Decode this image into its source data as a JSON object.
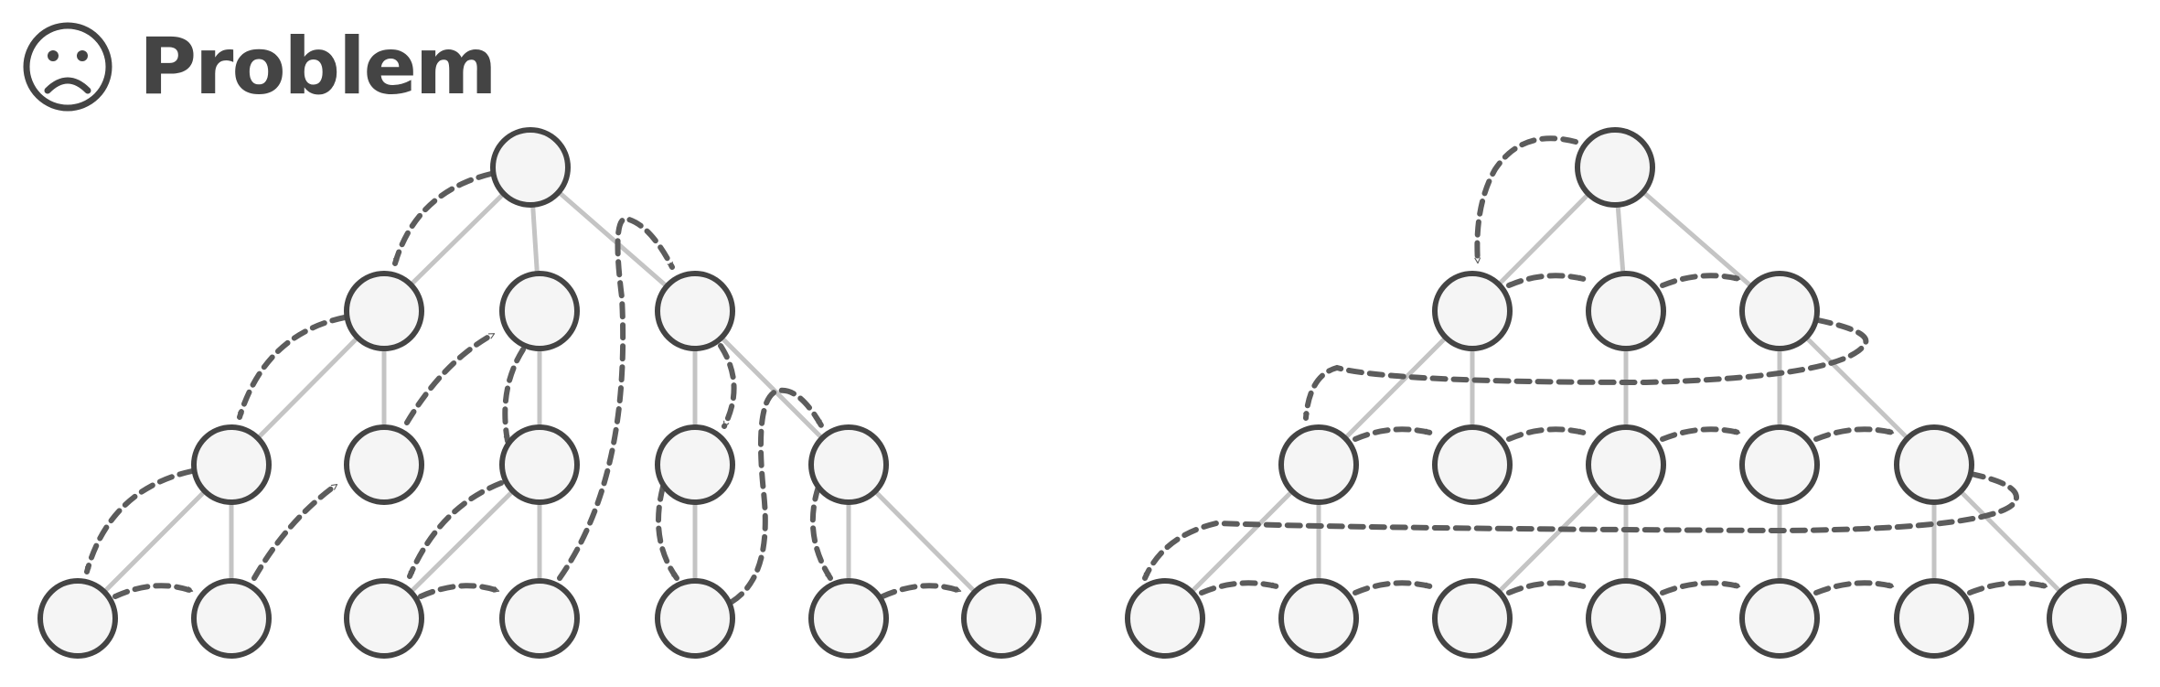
{
  "header": {
    "icon": "frowning-face-icon",
    "title": "Problem"
  },
  "colors": {
    "text": "#444444",
    "node_fill": "#f5f5f5",
    "node_stroke": "#444444",
    "tree_edge": "#c4c4c4",
    "traversal_arrow": "#5c5c5c"
  },
  "diagrams": [
    {
      "name": "depth-first-traversal-tree",
      "arrow_style": "dashed"
    },
    {
      "name": "breadth-first-traversal-tree",
      "arrow_style": "dashed"
    }
  ]
}
